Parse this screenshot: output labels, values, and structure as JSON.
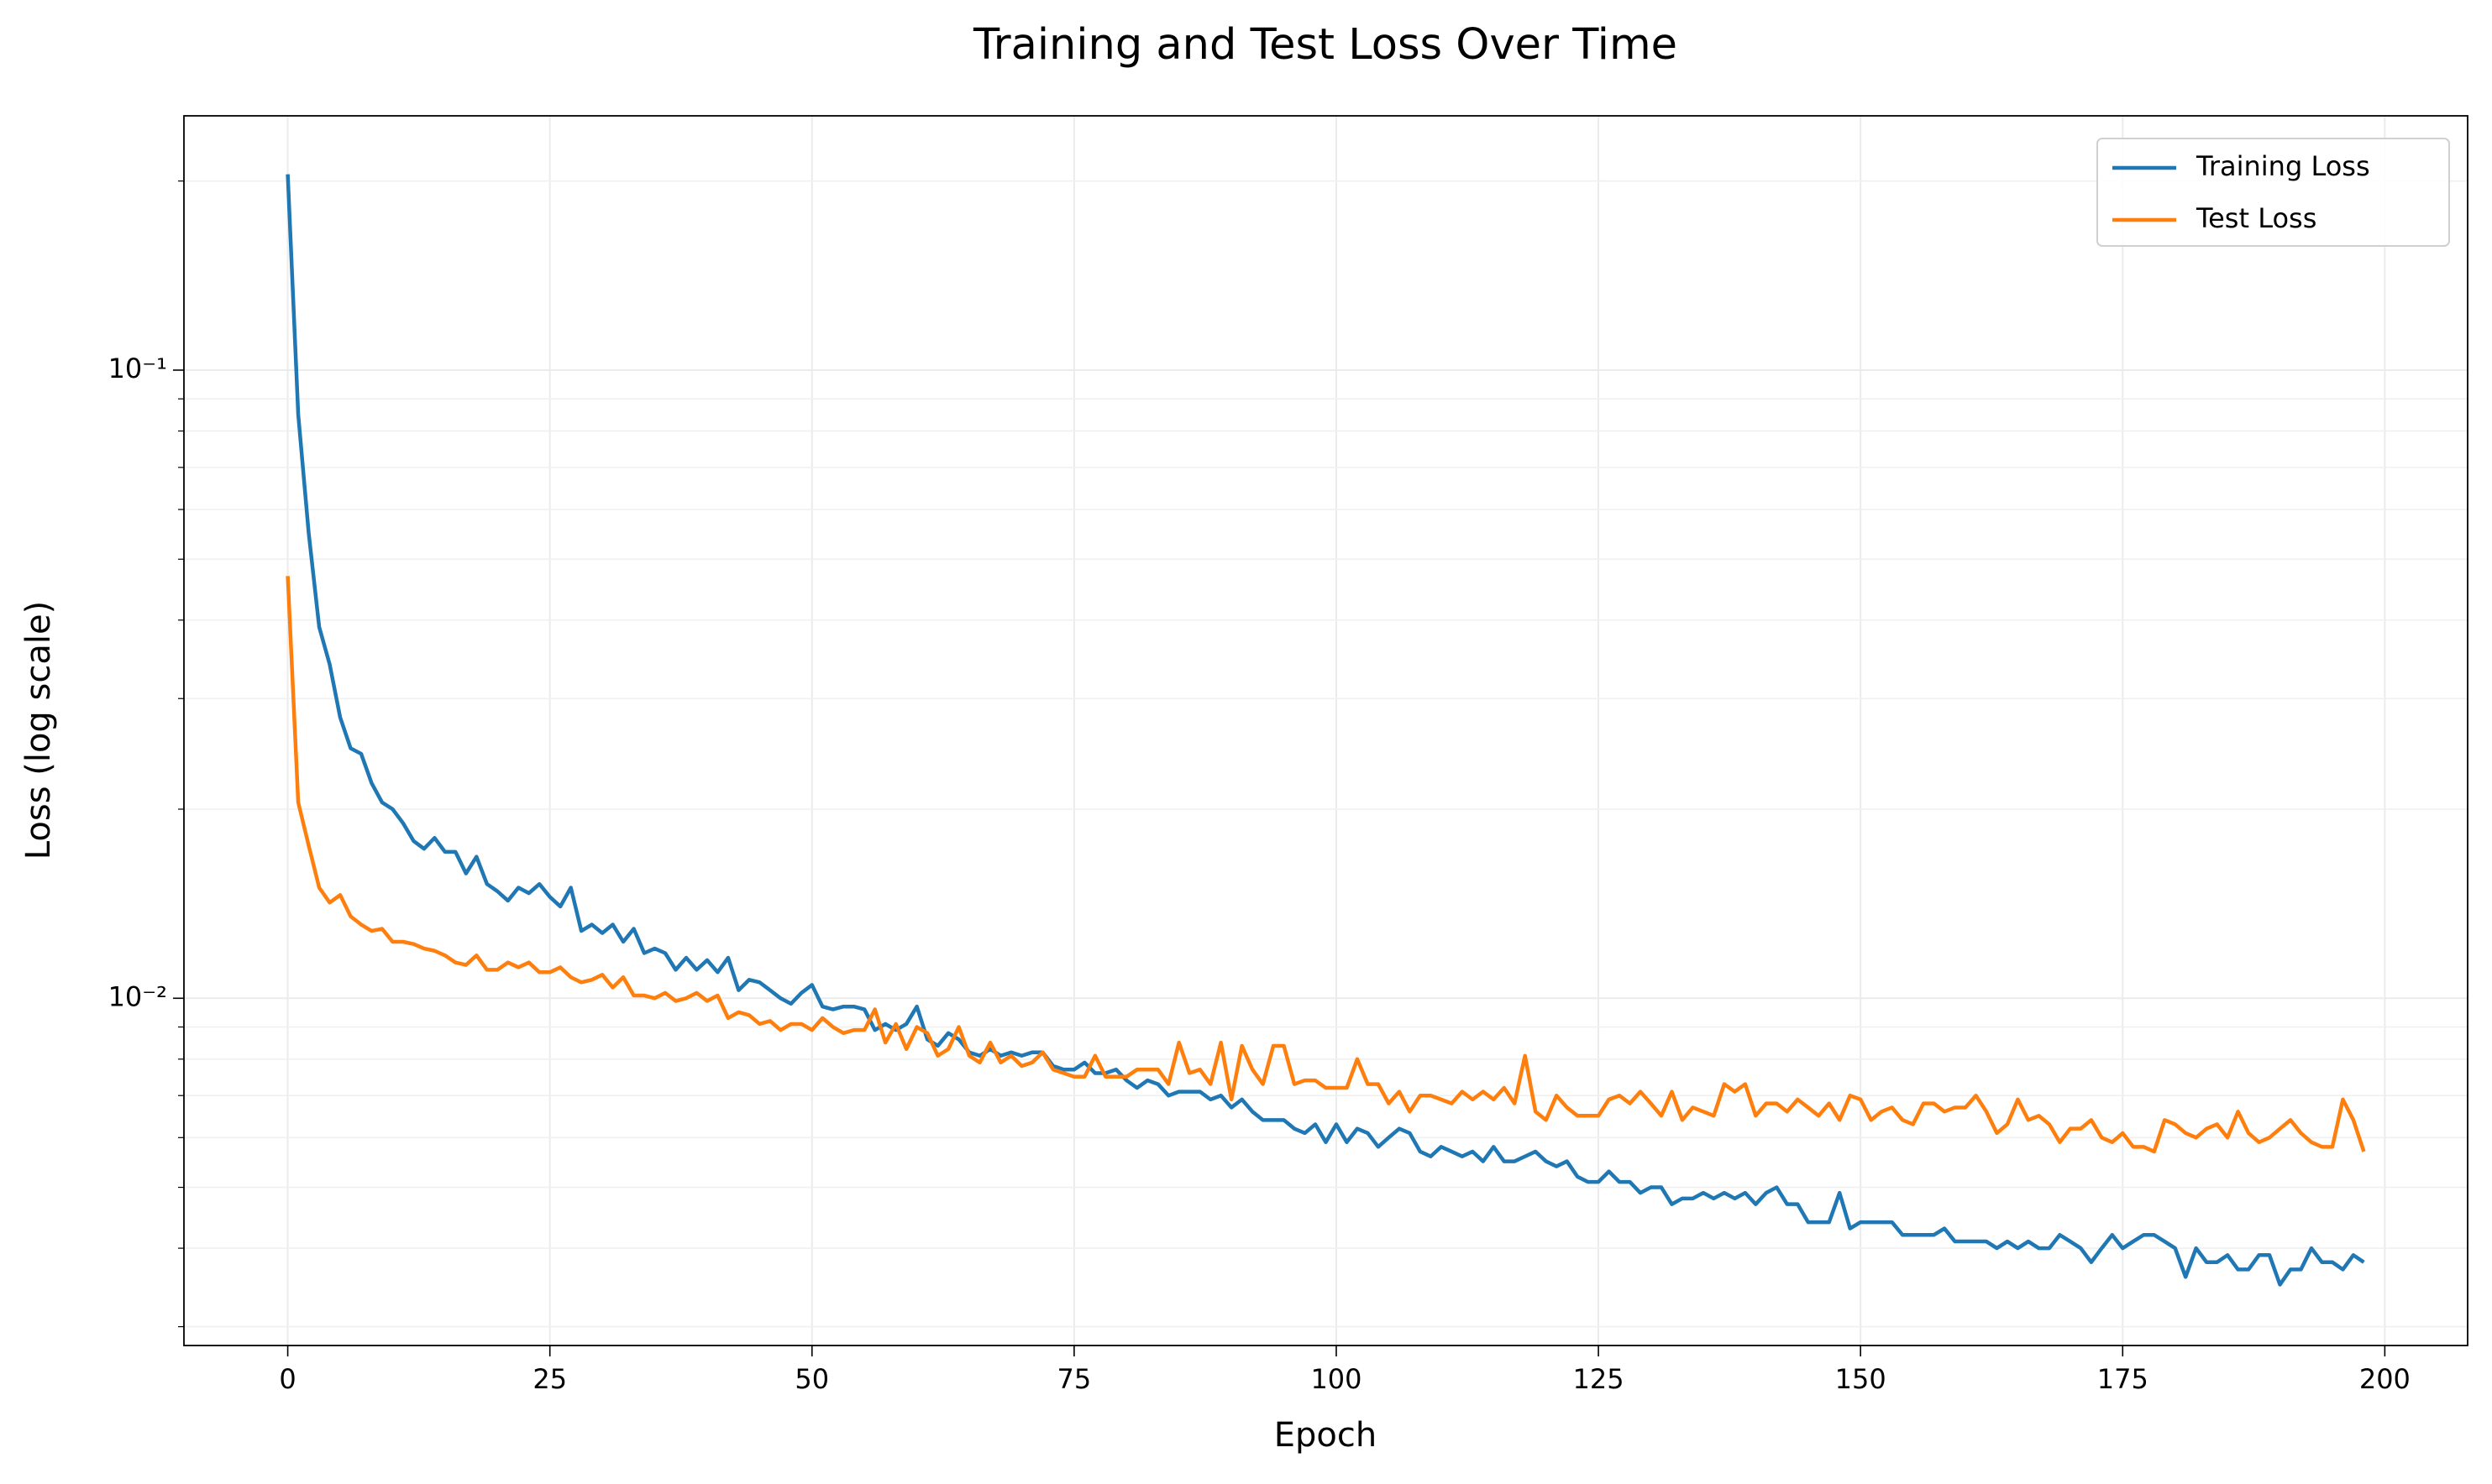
{
  "chart_data": {
    "type": "line",
    "title": "Training and Test Loss Over Time",
    "xlabel": "Epoch",
    "ylabel": "Loss (log scale)",
    "ylog": true,
    "grid": true,
    "legend": "upper right",
    "xlim": [
      -9.9,
      207.9
    ],
    "xticks": [
      0,
      25,
      50,
      75,
      100,
      125,
      150,
      175,
      200
    ],
    "ylim": [
      0.0028,
      0.254
    ],
    "yticks": [
      {
        "value": 0.01,
        "label": "10⁻²"
      },
      {
        "value": 0.1,
        "label": "10⁻¹"
      }
    ],
    "yminorticks": [
      0.003,
      0.004,
      0.005,
      0.006,
      0.007,
      0.008,
      0.009,
      0.02,
      0.03,
      0.04,
      0.05,
      0.06,
      0.07,
      0.08,
      0.09,
      0.2
    ],
    "x": [
      0,
      1,
      2,
      3,
      4,
      5,
      6,
      7,
      8,
      9,
      10,
      11,
      12,
      13,
      14,
      15,
      16,
      17,
      18,
      19,
      20,
      21,
      22,
      23,
      24,
      25,
      26,
      27,
      28,
      29,
      30,
      31,
      32,
      33,
      34,
      35,
      36,
      37,
      38,
      39,
      40,
      41,
      42,
      43,
      44,
      45,
      46,
      47,
      48,
      49,
      50,
      51,
      52,
      53,
      54,
      55,
      56,
      57,
      58,
      59,
      60,
      61,
      62,
      63,
      64,
      65,
      66,
      67,
      68,
      69,
      70,
      71,
      72,
      73,
      74,
      75,
      76,
      77,
      78,
      79,
      80,
      81,
      82,
      83,
      84,
      85,
      86,
      87,
      88,
      89,
      90,
      91,
      92,
      93,
      94,
      95,
      96,
      97,
      98,
      99,
      100,
      101,
      102,
      103,
      104,
      105,
      106,
      107,
      108,
      109,
      110,
      111,
      112,
      113,
      114,
      115,
      116,
      117,
      118,
      119,
      120,
      121,
      122,
      123,
      124,
      125,
      126,
      127,
      128,
      129,
      130,
      131,
      132,
      133,
      134,
      135,
      136,
      137,
      138,
      139,
      140,
      141,
      142,
      143,
      144,
      145,
      146,
      147,
      148,
      149,
      150,
      151,
      152,
      153,
      154,
      155,
      156,
      157,
      158,
      159,
      160,
      161,
      162,
      163,
      164,
      165,
      166,
      167,
      168,
      169,
      170,
      171,
      172,
      173,
      174,
      175,
      176,
      177,
      178,
      179,
      180,
      181,
      182,
      183,
      184,
      185,
      186,
      187,
      188,
      189,
      190,
      191,
      192,
      193,
      194,
      195,
      196,
      197,
      198
    ],
    "series": [
      {
        "name": "Training Loss",
        "color": "#1f77b4",
        "values": [
          0.205,
          0.085,
          0.055,
          0.039,
          0.034,
          0.028,
          0.025,
          0.0245,
          0.022,
          0.0205,
          0.02,
          0.019,
          0.0178,
          0.0173,
          0.018,
          0.0171,
          0.0171,
          0.0158,
          0.0168,
          0.0152,
          0.0148,
          0.0143,
          0.015,
          0.0147,
          0.0152,
          0.0145,
          0.014,
          0.015,
          0.0128,
          0.0131,
          0.0127,
          0.0131,
          0.0123,
          0.0129,
          0.0118,
          0.012,
          0.0118,
          0.0111,
          0.0116,
          0.0111,
          0.0115,
          0.011,
          0.0116,
          0.0103,
          0.0107,
          0.0106,
          0.0103,
          0.01,
          0.0098,
          0.0102,
          0.0105,
          0.0097,
          0.0096,
          0.0097,
          0.0097,
          0.0096,
          0.0089,
          0.0091,
          0.0089,
          0.0091,
          0.0097,
          0.0086,
          0.0084,
          0.0088,
          0.0086,
          0.0082,
          0.0081,
          0.0083,
          0.0081,
          0.0082,
          0.0081,
          0.0082,
          0.0082,
          0.0078,
          0.0077,
          0.0077,
          0.0079,
          0.0076,
          0.0076,
          0.0077,
          0.0074,
          0.0072,
          0.0074,
          0.0073,
          0.007,
          0.0071,
          0.0071,
          0.0071,
          0.0069,
          0.007,
          0.0067,
          0.0069,
          0.0066,
          0.0064,
          0.0064,
          0.0064,
          0.0062,
          0.0061,
          0.0063,
          0.0059,
          0.0063,
          0.0059,
          0.0062,
          0.0061,
          0.0058,
          0.006,
          0.0062,
          0.0061,
          0.0057,
          0.0056,
          0.0058,
          0.0057,
          0.0056,
          0.0057,
          0.0055,
          0.0058,
          0.0055,
          0.0055,
          0.0056,
          0.0057,
          0.0055,
          0.0054,
          0.0055,
          0.0052,
          0.0051,
          0.0051,
          0.0053,
          0.0051,
          0.0051,
          0.0049,
          0.005,
          0.005,
          0.0047,
          0.0048,
          0.0048,
          0.0049,
          0.0048,
          0.0049,
          0.0048,
          0.0049,
          0.0047,
          0.0049,
          0.005,
          0.0047,
          0.0047,
          0.0044,
          0.0044,
          0.0044,
          0.0049,
          0.0043,
          0.0044,
          0.0044,
          0.0044,
          0.0044,
          0.0042,
          0.0042,
          0.0042,
          0.0042,
          0.0043,
          0.0041,
          0.0041,
          0.0041,
          0.0041,
          0.004,
          0.0041,
          0.004,
          0.0041,
          0.004,
          0.004,
          0.0042,
          0.0041,
          0.004,
          0.0038,
          0.004,
          0.0042,
          0.004,
          0.0041,
          0.0042,
          0.0042,
          0.0041,
          0.004,
          0.0036,
          0.004,
          0.0038,
          0.0038,
          0.0039,
          0.0037,
          0.0037,
          0.0039,
          0.0039,
          0.0035,
          0.0037,
          0.0037,
          0.004,
          0.0038,
          0.0038,
          0.0037,
          0.0039,
          0.0038
        ]
      },
      {
        "name": "Test Loss",
        "color": "#ff7f0e",
        "values": [
          0.047,
          0.0205,
          0.0175,
          0.015,
          0.0142,
          0.0146,
          0.0135,
          0.0131,
          0.0128,
          0.0129,
          0.0123,
          0.0123,
          0.0122,
          0.012,
          0.0119,
          0.0117,
          0.0114,
          0.0113,
          0.0117,
          0.0111,
          0.0111,
          0.0114,
          0.0112,
          0.0114,
          0.011,
          0.011,
          0.0112,
          0.0108,
          0.0106,
          0.0107,
          0.0109,
          0.0104,
          0.0108,
          0.0101,
          0.0101,
          0.01,
          0.0102,
          0.0099,
          0.01,
          0.0102,
          0.0099,
          0.0101,
          0.0093,
          0.0095,
          0.0094,
          0.0091,
          0.0092,
          0.0089,
          0.0091,
          0.0091,
          0.0089,
          0.0093,
          0.009,
          0.0088,
          0.0089,
          0.0089,
          0.0096,
          0.0085,
          0.0091,
          0.0083,
          0.009,
          0.0088,
          0.0081,
          0.0083,
          0.009,
          0.0081,
          0.0079,
          0.0085,
          0.0079,
          0.0081,
          0.0078,
          0.0079,
          0.0082,
          0.0077,
          0.0076,
          0.0075,
          0.0075,
          0.0081,
          0.0075,
          0.0075,
          0.0075,
          0.0077,
          0.0077,
          0.0077,
          0.0073,
          0.0085,
          0.0076,
          0.0077,
          0.0073,
          0.0085,
          0.0069,
          0.0084,
          0.0077,
          0.0073,
          0.0084,
          0.0084,
          0.0073,
          0.0074,
          0.0074,
          0.0072,
          0.0072,
          0.0072,
          0.008,
          0.0073,
          0.0073,
          0.0068,
          0.0071,
          0.0066,
          0.007,
          0.007,
          0.0069,
          0.0068,
          0.0071,
          0.0069,
          0.0071,
          0.0069,
          0.0072,
          0.0068,
          0.0081,
          0.0066,
          0.0064,
          0.007,
          0.0067,
          0.0065,
          0.0065,
          0.0065,
          0.0069,
          0.007,
          0.0068,
          0.0071,
          0.0068,
          0.0065,
          0.0071,
          0.0064,
          0.0067,
          0.0066,
          0.0065,
          0.0073,
          0.0071,
          0.0073,
          0.0065,
          0.0068,
          0.0068,
          0.0066,
          0.0069,
          0.0067,
          0.0065,
          0.0068,
          0.0064,
          0.007,
          0.0069,
          0.0064,
          0.0066,
          0.0067,
          0.0064,
          0.0063,
          0.0068,
          0.0068,
          0.0066,
          0.0067,
          0.0067,
          0.007,
          0.0066,
          0.0061,
          0.0063,
          0.0069,
          0.0064,
          0.0065,
          0.0063,
          0.0059,
          0.0062,
          0.0062,
          0.0064,
          0.006,
          0.0059,
          0.0061,
          0.0058,
          0.0058,
          0.0057,
          0.0064,
          0.0063,
          0.0061,
          0.006,
          0.0062,
          0.0063,
          0.006,
          0.0066,
          0.0061,
          0.0059,
          0.006,
          0.0062,
          0.0064,
          0.0061,
          0.0059,
          0.0058,
          0.0058,
          0.0069,
          0.0064,
          0.0057
        ]
      }
    ]
  }
}
